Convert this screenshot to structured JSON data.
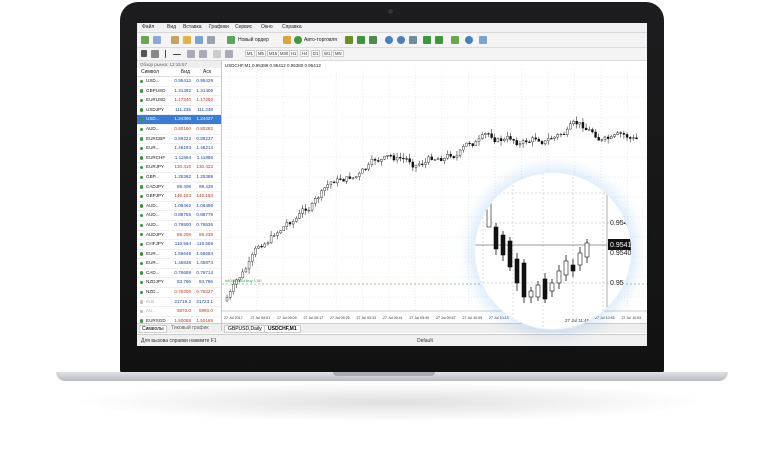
{
  "menu": [
    "Файл",
    "Вид",
    "Вставка",
    "Графики",
    "Сервис",
    "Окно",
    "Справка"
  ],
  "toolbar": {
    "new_order": "Новый ордер",
    "auto_trading": "Авто-торговля",
    "timeframes": [
      "M1",
      "M5",
      "M15",
      "M30",
      "H1",
      "H4",
      "D1",
      "W1",
      "MN"
    ]
  },
  "market_watch": {
    "title": "Обзор рынка: 12:15:57",
    "col_symbol": "Символ",
    "col_bid": "Бид",
    "col_ask": "Аск",
    "tabs": [
      "Символы",
      "Тиковый график"
    ],
    "rows": [
      {
        "symbol": "USD...",
        "bid": "0.95412",
        "ask": "0.95429",
        "color": "#1a3fbf"
      },
      {
        "symbol": "GBPUSD",
        "bid": "1.31392",
        "ask": "1.31406",
        "color": "#1a3fbf"
      },
      {
        "symbol": "EURUSD",
        "bid": "1.17240",
        "ask": "1.17250",
        "color": "#d0331d"
      },
      {
        "symbol": "USDJPY",
        "bid": "111.235",
        "ask": "111.248",
        "color": "#1a3fbf"
      },
      {
        "symbol": "USD...",
        "bid": "1.24390",
        "ask": "1.24427",
        "color": "#1a3fbf",
        "selected": true
      },
      {
        "symbol": "AUD...",
        "bid": "0.80190",
        "ask": "0.80282",
        "color": "#d0331d"
      },
      {
        "symbol": "EURGBP",
        "bid": "0.89223",
        "ask": "0.89237",
        "color": "#1a3fbf"
      },
      {
        "symbol": "EUR...",
        "bid": "1.46193",
        "ask": "1.46214",
        "color": "#1a3fbf"
      },
      {
        "symbol": "EURCHF",
        "bid": "1.11864",
        "ask": "1.11886",
        "color": "#1a3fbf"
      },
      {
        "symbol": "EURJPY",
        "bid": "130.410",
        "ask": "130.433",
        "color": "#d0331d"
      },
      {
        "symbol": "GBP...",
        "bid": "1.25362",
        "ask": "1.25388",
        "color": "#1a3fbf"
      },
      {
        "symbol": "CADJPY",
        "bid": "89.408",
        "ask": "89.429",
        "color": "#1a3fbf"
      },
      {
        "symbol": "GBPJPY",
        "bid": "146.153",
        "ask": "146.183",
        "color": "#d0331d"
      },
      {
        "symbol": "AUD...",
        "bid": "1.06462",
        "ask": "1.06496",
        "color": "#1a3fbf"
      },
      {
        "symbol": "AUD...",
        "bid": "0.88755",
        "ask": "0.88779",
        "color": "#1a3fbf"
      },
      {
        "symbol": "AUD...",
        "bid": "0.76500",
        "ask": "0.76536",
        "color": "#1a3fbf"
      },
      {
        "symbol": "AUDJPY",
        "bid": "89.208",
        "ask": "89.239",
        "color": "#d0331d"
      },
      {
        "symbol": "CHFJPY",
        "bid": "116.564",
        "ask": "116.565",
        "color": "#1a3fbf"
      },
      {
        "symbol": "EUR...",
        "bid": "1.55648",
        "ask": "1.55684",
        "color": "#1a3fbf"
      },
      {
        "symbol": "EUR...",
        "bid": "1.45838",
        "ask": "1.45874",
        "color": "#1a3fbf"
      },
      {
        "symbol": "CAD...",
        "bid": "0.76689",
        "ask": "0.76714",
        "color": "#1a3fbf"
      },
      {
        "symbol": "NZDJPY",
        "bid": "83.766",
        "ask": "83.786",
        "color": "#1a3fbf"
      },
      {
        "symbol": "NZD...",
        "bid": "0.75306",
        "ask": "0.75327",
        "color": "#d0331d"
      },
      {
        "symbol": "#LB",
        "bid": "21719.2",
        "ask": "21723.1",
        "color": "#1a3fbf",
        "grey": true
      },
      {
        "symbol": "AU...",
        "bid": "5970.0",
        "ask": "5980.0",
        "color": "#d0331d",
        "grey": true
      },
      {
        "symbol": "EURSGD",
        "bid": "1.50088",
        "ask": "1.50165",
        "color": "#d0331d"
      },
      {
        "symbol": "GBP...",
        "bid": "1.83824",
        "ask": "1.83870",
        "color": "#1a3fbf"
      }
    ]
  },
  "chart": {
    "header": "USDCHF,M1  0.95389 0.95412 0.95380 0.95412",
    "order_line_label": "#40483924 buy 1.00",
    "x_labels": [
      "27 Jul 2017",
      "27 Jul 09:01",
      "27 Jul 09:09",
      "27 Jul 09:17",
      "27 Jul 09:25",
      "27 Jul 09:33",
      "27 Jul 09:41",
      "27 Jul 09:49",
      "27 Jul 09:57",
      "27 Jul 10:05",
      "27 Jul 10:13",
      "27 Jul 10:21",
      "27 Jul 10:29",
      "27 Jul 10:37",
      "27 Jul 10:45",
      "27 Jul 10:53"
    ],
    "tabs": [
      "GBPUSD,Daily",
      "USDCHF,M1"
    ],
    "active_tab": 1
  },
  "magnifier": {
    "price_labels": [
      "0.954",
      "0.9540",
      "0.95"
    ],
    "current_price": "0.9541",
    "x_labels": [
      "27 Jul 11:13",
      "27 Jul 11:45"
    ]
  },
  "status": {
    "help": "Для вызова справки нажмите F1",
    "profile": "Default"
  }
}
